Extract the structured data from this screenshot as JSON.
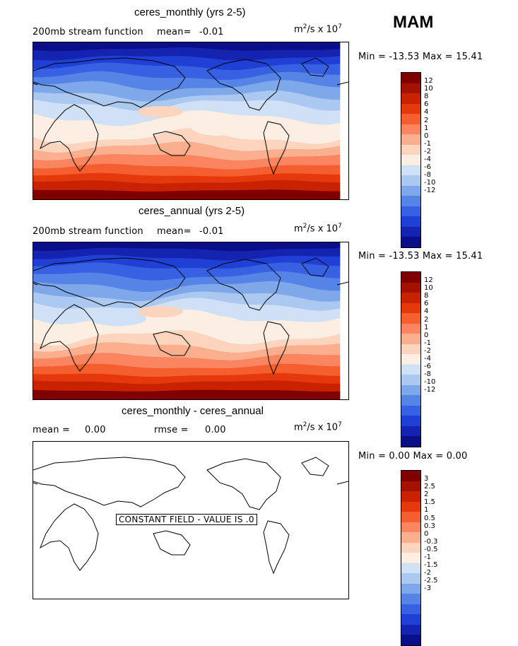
{
  "season": "MAM",
  "palette": {
    "pos": [
      "#800000",
      "#a31100",
      "#c82200",
      "#e5390d",
      "#f55f2f",
      "#fb8560",
      "#fcaf8f",
      "#fdd4be",
      "#fdeee3"
    ],
    "neg": [
      "#d0e1f7",
      "#aac8f0",
      "#7ea8ea",
      "#5683e6",
      "#3760e3",
      "#1f3fd5",
      "#1424b0",
      "#0a0e88"
    ],
    "land": "#000000"
  },
  "panels": [
    {
      "title": "ceres_monthly (yrs 2-5)",
      "field_label": "200mb stream function",
      "mean_label": "mean=",
      "mean_value": "-0.01",
      "units_base": "m",
      "units_exp": "2",
      "units_mid": "/s x 10",
      "units_exp2": "7",
      "minmax": "Min = -13.53 Max =  15.41",
      "colorbar_labels": [
        "12",
        "10",
        "8",
        "6",
        "4",
        "2",
        "1",
        "0",
        "-1",
        "-2",
        "-4",
        "-6",
        "-8",
        "-10",
        "-12"
      ]
    },
    {
      "title": "ceres_annual (yrs 2-5)",
      "field_label": "200mb stream function",
      "mean_label": "mean=",
      "mean_value": "-0.01",
      "units_base": "m",
      "units_exp": "2",
      "units_mid": "/s x 10",
      "units_exp2": "7",
      "minmax": "Min = -13.53 Max =  15.41",
      "colorbar_labels": [
        "12",
        "10",
        "8",
        "6",
        "4",
        "2",
        "1",
        "0",
        "-1",
        "-2",
        "-4",
        "-6",
        "-8",
        "-10",
        "-12"
      ]
    },
    {
      "title": "ceres_monthly - ceres_annual",
      "mean_label": "mean =",
      "mean_value": "0.00",
      "rmse_label": "rmse =",
      "rmse_value": "0.00",
      "units_base": "m",
      "units_exp": "2",
      "units_mid": "/s x 10",
      "units_exp2": "7",
      "minmax": "Min =   0.00 Max =   0.00",
      "constant_field": "CONSTANT FIELD - VALUE IS .0",
      "colorbar_labels": [
        "3",
        "2.5",
        "2",
        "1.5",
        "1",
        "0.5",
        "0.3",
        "0",
        "-0.3",
        "-0.5",
        "-1",
        "-1.5",
        "-2",
        "-2.5",
        "-3"
      ]
    }
  ]
}
